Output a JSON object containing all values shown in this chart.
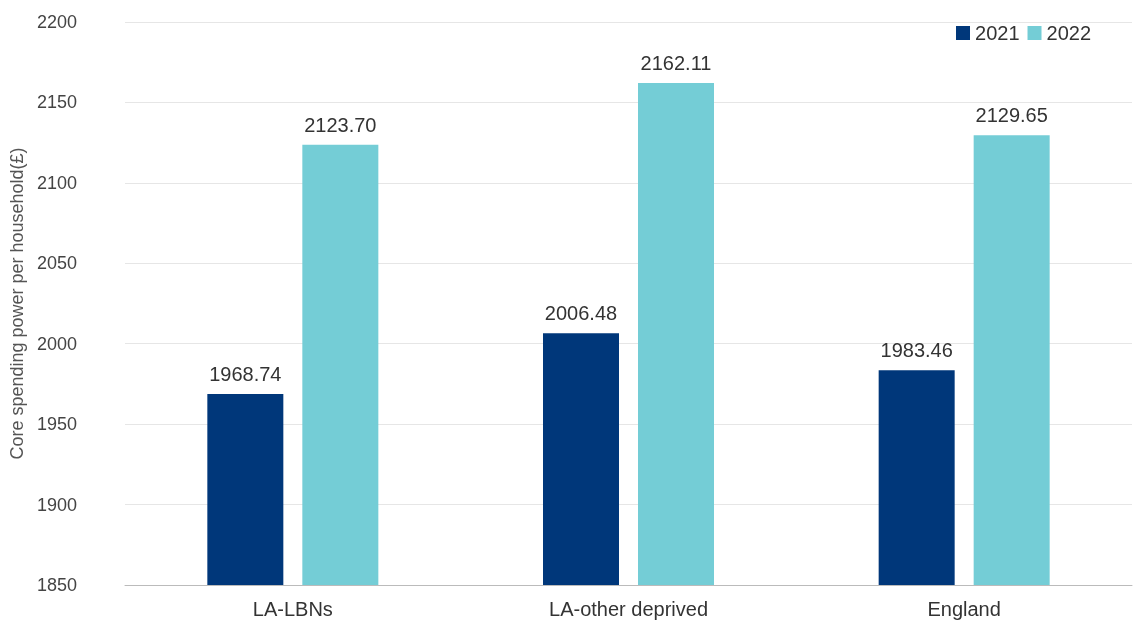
{
  "chart_data": {
    "type": "bar",
    "ylabel": "Core spending power per household(£)",
    "categories": [
      "LA-LBNs",
      "LA-other deprived",
      "England"
    ],
    "series": [
      {
        "name": "2021",
        "color": "#00377a",
        "values": [
          1968.74,
          2006.48,
          1983.46
        ],
        "value_labels": [
          "1968.74",
          "2006.48",
          "1983.46"
        ]
      },
      {
        "name": "2022",
        "color": "#74cdd6",
        "values": [
          2123.7,
          2162.11,
          2129.65
        ],
        "value_labels": [
          "2123.70",
          "2162.11",
          "2129.65"
        ]
      }
    ],
    "ylim": [
      1850,
      2200
    ],
    "yticks": [
      1850,
      1900,
      1950,
      2000,
      2050,
      2100,
      2150,
      2200
    ],
    "grid": "y",
    "legend": "top right"
  }
}
